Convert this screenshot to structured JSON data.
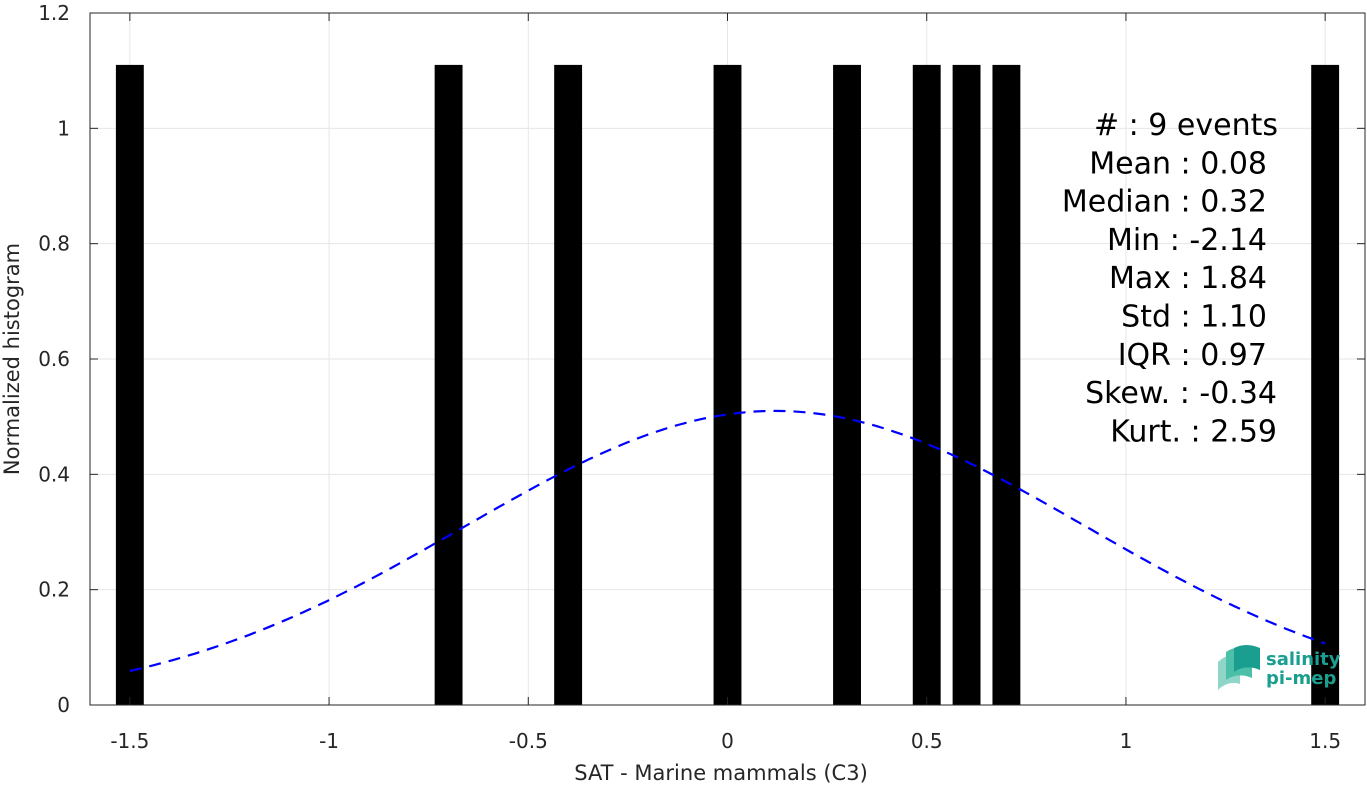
{
  "chart_data": {
    "type": "bar",
    "xlabel": "SAT - Marine mammals (C3)",
    "ylabel": "Normalized histogram",
    "xlim": [
      -1.6,
      1.6
    ],
    "ylim": [
      0,
      1.2
    ],
    "x_ticks": [
      -1.5,
      -1,
      -0.5,
      0,
      0.5,
      1,
      1.5
    ],
    "x_tick_labels": [
      "-1.5",
      "-1",
      "-0.5",
      "0",
      "0.5",
      "1",
      "1.5"
    ],
    "y_ticks": [
      0,
      0.2,
      0.4,
      0.6,
      0.8,
      1,
      1.2
    ],
    "y_tick_labels": [
      "0",
      "0.2",
      "0.4",
      "0.6",
      "0.8",
      "1",
      "1.2"
    ],
    "grid": true,
    "bar_width": 0.07,
    "bars": [
      {
        "x": -1.5,
        "value": 1.11
      },
      {
        "x": -0.7,
        "value": 1.11
      },
      {
        "x": -0.4,
        "value": 1.11
      },
      {
        "x": 0.0,
        "value": 1.11
      },
      {
        "x": 0.3,
        "value": 1.11
      },
      {
        "x": 0.5,
        "value": 1.11
      },
      {
        "x": 0.6,
        "value": 1.11
      },
      {
        "x": 0.7,
        "value": 1.11
      },
      {
        "x": 1.5,
        "value": 1.11
      }
    ],
    "fit_curve": {
      "style": "dashed",
      "color": "#0000ff",
      "mean": 0.12,
      "std": 0.78,
      "peak": 0.51,
      "x_range": [
        -1.5,
        1.5
      ]
    },
    "annotations": [
      "#  : 9 events",
      "Mean : 0.08",
      "Median : 0.32",
      "Min : -2.14",
      "Max : 1.84",
      "Std : 1.10",
      "IQR : 0.97",
      "Skew. : -0.34",
      "Kurt. : 2.59"
    ],
    "bar_color": "#000000"
  },
  "logo": {
    "line1": "salinity",
    "line2": "pi-mep"
  }
}
